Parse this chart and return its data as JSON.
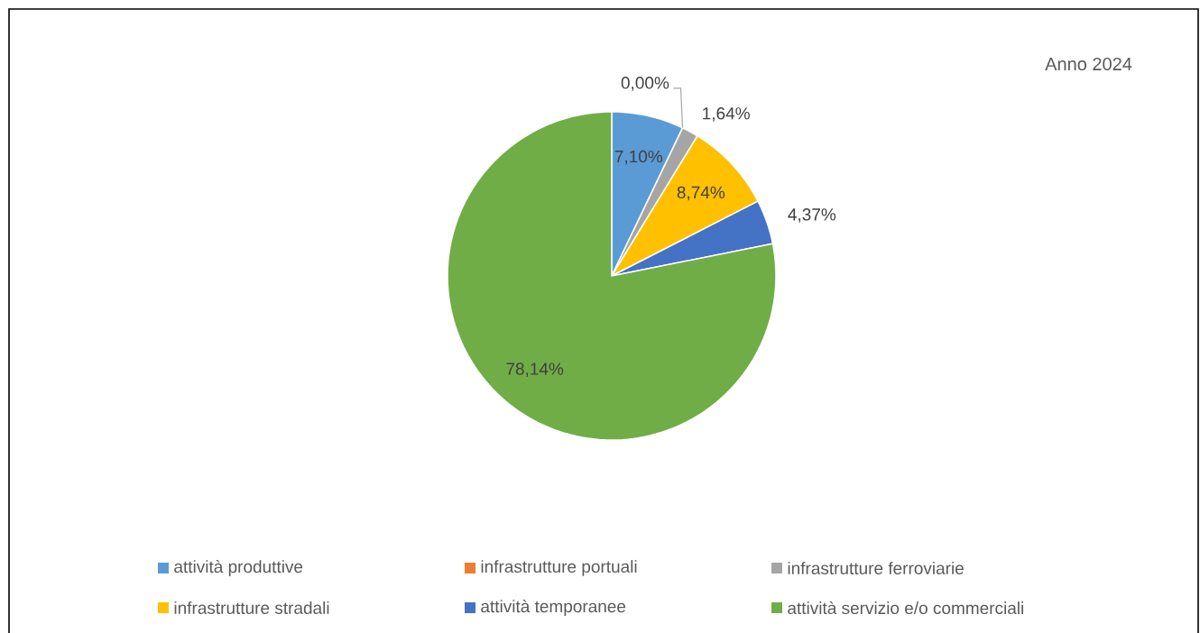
{
  "chart_data": {
    "type": "pie",
    "title": "Anno 2024",
    "categories": [
      "attività produttive",
      "infrastrutture portuali",
      "infrastrutture ferroviarie",
      "infrastrutture stradali",
      "attività temporanee",
      "attività servizio e/o commerciali"
    ],
    "values": [
      7.1,
      0.0,
      1.64,
      8.74,
      4.37,
      78.14
    ],
    "colors": [
      "#5b9bd5",
      "#ed7d31",
      "#a5a5a5",
      "#ffc000",
      "#4472c4",
      "#70ad47"
    ],
    "value_labels": [
      "7,10%",
      "0,00%",
      "1,64%",
      "8,74%",
      "4,37%",
      "78,14%"
    ],
    "legend": "bottom"
  }
}
